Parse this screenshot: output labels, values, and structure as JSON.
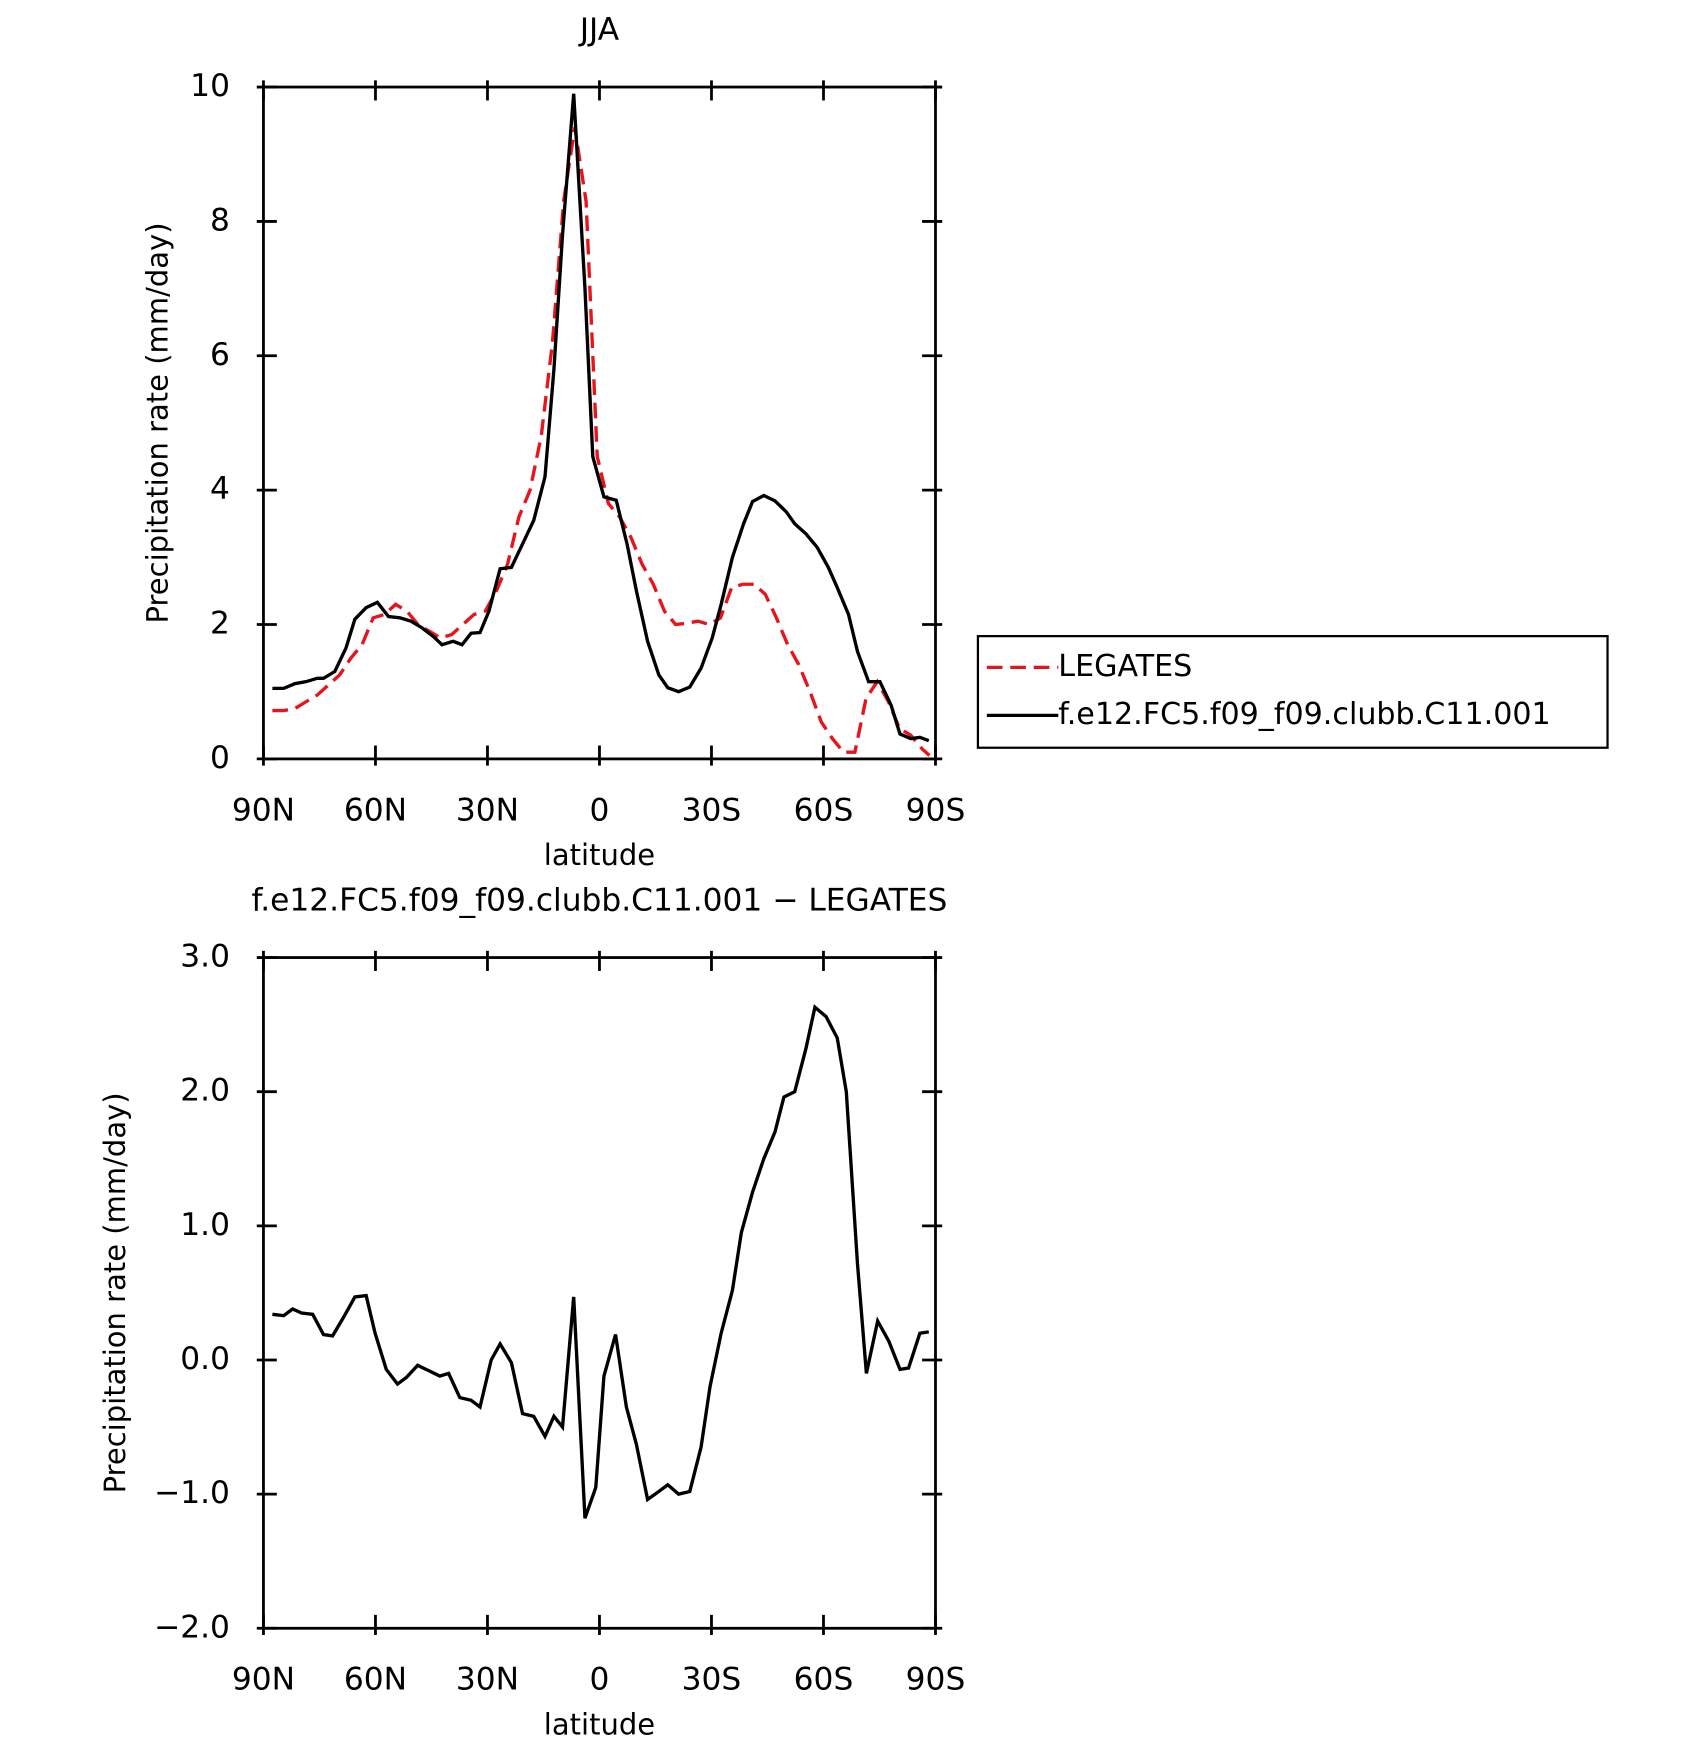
{
  "chart_data": [
    {
      "type": "line",
      "title": "JJA",
      "xlabel": "latitude",
      "ylabel": "Precipitation rate (mm/day)",
      "xlim": [
        90,
        -90
      ],
      "xticks": [
        {
          "value": 90,
          "label": "90N"
        },
        {
          "value": 60,
          "label": "60N"
        },
        {
          "value": 30,
          "label": "30N"
        },
        0,
        {
          "value": -30,
          "label": "30S"
        },
        {
          "value": -60,
          "label": "60S"
        },
        {
          "value": -90,
          "label": "90S"
        }
      ],
      "ylim": [
        0,
        10
      ],
      "yticks": [
        0,
        2,
        4,
        6,
        8,
        10
      ],
      "legend": "right",
      "series": [
        {
          "name": "LEGATES",
          "color": "#e8141b",
          "dash": true,
          "x": [
            87.6,
            84.6,
            81.6,
            78.6,
            75.6,
            72.6,
            69.6,
            66.6,
            63.6,
            60.6,
            57.6,
            54.6,
            51.6,
            48.6,
            45.6,
            42.6,
            39.6,
            36.6,
            33.6,
            30.6,
            27.6,
            24.6,
            21.6,
            18.6,
            15.6,
            12.6,
            9.6,
            6.6,
            3.6,
            0.6,
            -2.4,
            -5.4,
            -8.4,
            -11.4,
            -14.4,
            -17.4,
            -20.4,
            -23.4,
            -26.4,
            -29.4,
            -32.4,
            -35.4,
            -38.4,
            -41.4,
            -44.4,
            -47.4,
            -50.4,
            -53.4,
            -56.4,
            -59.4,
            -62.4,
            -65.4,
            -68.4,
            -71.4,
            -74.4,
            -77.4,
            -80.4,
            -83.4,
            -86.4,
            -88.4
          ],
          "values": [
            0.72,
            0.72,
            0.75,
            0.85,
            0.95,
            1.1,
            1.25,
            1.5,
            1.7,
            2.1,
            2.15,
            2.3,
            2.2,
            2.0,
            1.9,
            1.8,
            1.85,
            2.0,
            2.15,
            2.2,
            2.5,
            2.9,
            3.6,
            4.0,
            4.8,
            6.2,
            8.3,
            9.4,
            8.3,
            4.5,
            3.8,
            3.6,
            3.3,
            2.9,
            2.6,
            2.2,
            2.0,
            2.02,
            2.05,
            2.0,
            2.1,
            2.55,
            2.6,
            2.6,
            2.45,
            2.1,
            1.7,
            1.4,
            1.0,
            0.55,
            0.3,
            0.1,
            0.1,
            0.9,
            1.15,
            0.85,
            0.45,
            0.35,
            0.15,
            0.05
          ]
        },
        {
          "name": "f.e12.FC5.f09_f09.clubb.C11.001",
          "color": "#000000",
          "dash": false,
          "x": [
            87.6,
            84.6,
            81.6,
            78.6,
            75.6,
            73.9,
            70.9,
            67.9,
            65.5,
            62.5,
            59.5,
            56.5,
            53.5,
            50.5,
            47.5,
            44.5,
            42.2,
            39.2,
            36.8,
            34.4,
            32,
            29.6,
            26.6,
            23.6,
            20.6,
            17.6,
            14.6,
            12.2,
            9.9,
            6.9,
            3.9,
            1.8,
            -1.2,
            -4.5,
            -7.4,
            -9.9,
            -12.9,
            -15.9,
            -18.3,
            -21.2,
            -24.2,
            -27.2,
            -30.2,
            -32.6,
            -35.6,
            -38.6,
            -41,
            -44,
            -47,
            -50,
            -52.3,
            -55.3,
            -58.3,
            -61.3,
            -63.7,
            -66.7,
            -69.1,
            -72.1,
            -75.1,
            -78.1,
            -80.5,
            -83.4,
            -85.8,
            -88.2
          ],
          "values": [
            1.05,
            1.05,
            1.12,
            1.15,
            1.2,
            1.2,
            1.3,
            1.65,
            2.08,
            2.25,
            2.33,
            2.12,
            2.1,
            2.05,
            1.95,
            1.82,
            1.7,
            1.75,
            1.7,
            1.87,
            1.88,
            2.2,
            2.83,
            2.85,
            3.2,
            3.55,
            4.2,
            5.8,
            7.8,
            9.9,
            7.0,
            4.5,
            3.9,
            3.85,
            3.2,
            2.5,
            1.75,
            1.25,
            1.06,
            1.0,
            1.07,
            1.35,
            1.8,
            2.3,
            3.0,
            3.5,
            3.83,
            3.92,
            3.84,
            3.68,
            3.5,
            3.35,
            3.15,
            2.85,
            2.55,
            2.15,
            1.6,
            1.15,
            1.15,
            0.8,
            0.37,
            0.3,
            0.32,
            0.27
          ]
        }
      ]
    },
    {
      "type": "line",
      "title": "f.e12.FC5.f09_f09.clubb.C11.001 − LEGATES",
      "xlabel": "latitude",
      "ylabel": "Precipitation rate (mm/day)",
      "xlim": [
        90,
        -90
      ],
      "xticks": [
        {
          "value": 90,
          "label": "90N"
        },
        {
          "value": 60,
          "label": "60N"
        },
        {
          "value": 30,
          "label": "30N"
        },
        0,
        {
          "value": -30,
          "label": "30S"
        },
        {
          "value": -60,
          "label": "60S"
        },
        {
          "value": -90,
          "label": "90S"
        }
      ],
      "ylim": [
        -2,
        3
      ],
      "yticks": [
        {
          "value": -2,
          "label": "−2.0"
        },
        {
          "value": -1,
          "label": "−1.0"
        },
        {
          "value": 0,
          "label": "0.0"
        },
        {
          "value": 1,
          "label": "1.0"
        },
        {
          "value": 2,
          "label": "2.0"
        },
        {
          "value": 3,
          "label": "3.0"
        }
      ],
      "series": [
        {
          "color": "#000000",
          "dash": false,
          "x": [
            87.6,
            84.6,
            82.2,
            79.8,
            76.8,
            73.9,
            71.5,
            68.5,
            65.5,
            62.5,
            60.1,
            57.1,
            54.1,
            51.7,
            48.7,
            45.7,
            42.8,
            40.4,
            37.4,
            34.4,
            32,
            29,
            26.6,
            23.6,
            20.6,
            17.6,
            14.6,
            12.2,
            9.9,
            6.9,
            3.9,
            1.0,
            -1.2,
            -4.3,
            -7.2,
            -9.9,
            -12.9,
            -15.9,
            -18.3,
            -21.2,
            -24.2,
            -27.2,
            -29.6,
            -32.6,
            -35.6,
            -38,
            -41,
            -44,
            -47,
            -49.4,
            -52.3,
            -55.3,
            -57.7,
            -60.7,
            -63.7,
            -66.1,
            -69.1,
            -71.5,
            -74.5,
            -77.5,
            -80.5,
            -82.8,
            -85.8,
            -88.2
          ],
          "values": [
            0.34,
            0.33,
            0.38,
            0.35,
            0.34,
            0.19,
            0.18,
            0.32,
            0.47,
            0.48,
            0.2,
            -0.07,
            -0.18,
            -0.13,
            -0.04,
            -0.08,
            -0.12,
            -0.1,
            -0.28,
            -0.3,
            -0.35,
            0.0,
            0.12,
            -0.02,
            -0.4,
            -0.42,
            -0.57,
            -0.42,
            -0.5,
            0.47,
            -1.18,
            -0.95,
            -0.12,
            0.19,
            -0.35,
            -0.63,
            -1.04,
            -0.98,
            -0.93,
            -1.0,
            -0.98,
            -0.65,
            -0.2,
            0.2,
            0.52,
            0.95,
            1.25,
            1.5,
            1.7,
            1.96,
            2.0,
            2.32,
            2.63,
            2.56,
            2.4,
            2.0,
            0.72,
            -0.1,
            0.29,
            0.14,
            -0.07,
            -0.06,
            0.2,
            0.21
          ]
        }
      ]
    }
  ]
}
